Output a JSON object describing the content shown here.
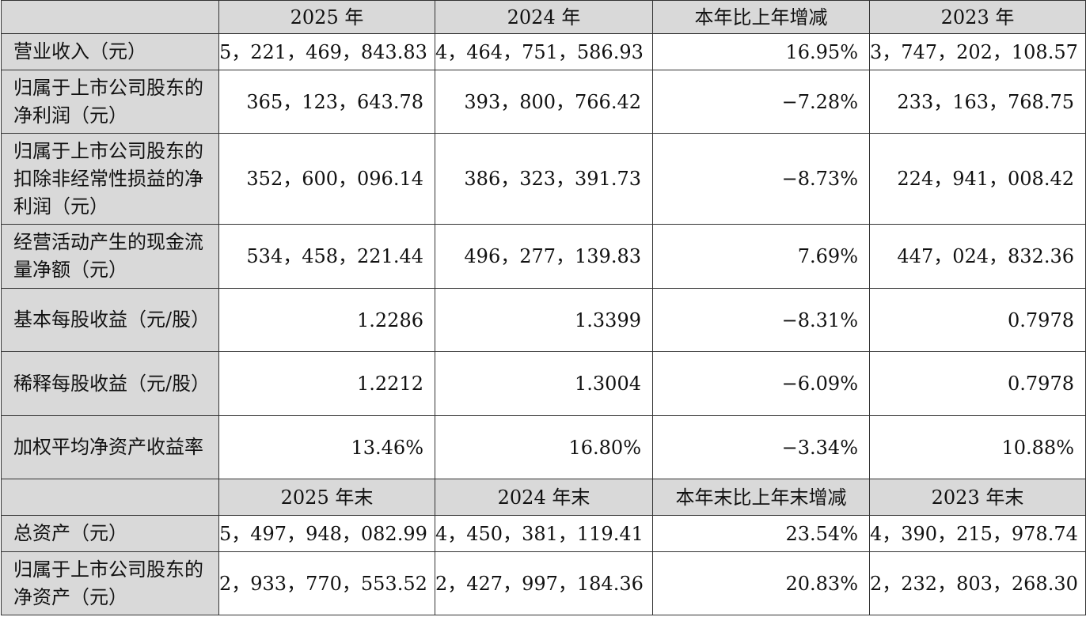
{
  "header1": {
    "col0": "",
    "col1": "2025 年",
    "col2": "2024 年",
    "col3": "本年比上年增减",
    "col4": "2023 年"
  },
  "rows1": [
    {
      "label": "营业收入（元）",
      "v1": "5，221，469，843.83",
      "v2": "4，464，751，586.93",
      "v3": "16.95%",
      "v4": "3，747，202，108.57"
    },
    {
      "label": "归属于上市公司股东的净利润（元）",
      "v1": "365，123，643.78",
      "v2": "393，800，766.42",
      "v3": "−7.28%",
      "v4": "233，163，768.75"
    },
    {
      "label": "归属于上市公司股东的扣除非经常性损益的净利润（元）",
      "v1": "352，600，096.14",
      "v2": "386，323，391.73",
      "v3": "−8.73%",
      "v4": "224，941，008.42"
    },
    {
      "label": "经营活动产生的现金流量净额（元）",
      "v1": "534，458，221.44",
      "v2": "496，277，139.83",
      "v3": "7.69%",
      "v4": "447，024，832.36"
    },
    {
      "label": "基本每股收益（元/股）",
      "v1": "1.2286",
      "v2": "1.3399",
      "v3": "−8.31%",
      "v4": "0.7978"
    },
    {
      "label": "稀释每股收益（元/股）",
      "v1": "1.2212",
      "v2": "1.3004",
      "v3": "−6.09%",
      "v4": "0.7978"
    },
    {
      "label": "加权平均净资产收益率",
      "v1": "13.46%",
      "v2": "16.80%",
      "v3": "−3.34%",
      "v4": "10.88%"
    }
  ],
  "header2": {
    "col0": "",
    "col1": "2025 年末",
    "col2": "2024 年末",
    "col3": "本年末比上年末增减",
    "col4": "2023 年末"
  },
  "rows2": [
    {
      "label": "总资产（元）",
      "v1": "5，497，948，082.99",
      "v2": "4，450，381，119.41",
      "v3": "23.54%",
      "v4": "4，390，215，978.74"
    },
    {
      "label": "归属于上市公司股东的净资产（元）",
      "v1": "2，933，770，553.52",
      "v2": "2，427，997，184.36",
      "v3": "20.83%",
      "v4": "2，232，803，268.30"
    }
  ]
}
